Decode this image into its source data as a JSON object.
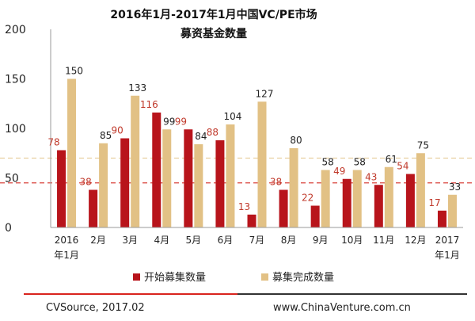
{
  "chart_data": {
    "type": "bar",
    "title": [
      "2016年1月-2017年1月中国VC/PE市场",
      "募资基金数量"
    ],
    "categories": [
      [
        "2016",
        "年1月"
      ],
      [
        "2月"
      ],
      [
        "3月"
      ],
      [
        "4月"
      ],
      [
        "5月"
      ],
      [
        "6月"
      ],
      [
        "7月"
      ],
      [
        "8月"
      ],
      [
        "9月"
      ],
      [
        "10月"
      ],
      [
        "11月"
      ],
      [
        "12月"
      ],
      [
        "2017",
        "年1月"
      ]
    ],
    "series": [
      {
        "name": "开始募集数量",
        "color": "#b8141b",
        "label_color": "#c0392b",
        "values": [
          78,
          38,
          90,
          116,
          99,
          88,
          13,
          38,
          22,
          49,
          43,
          54,
          17
        ]
      },
      {
        "name": "募集完成数量",
        "color": "#e2c185",
        "label_color": "#222222",
        "values": [
          150,
          85,
          133,
          99,
          84,
          104,
          127,
          80,
          58,
          58,
          61,
          75,
          33
        ]
      }
    ],
    "yticks": [
      0,
      50,
      100,
      150,
      200
    ],
    "ylim": [
      0,
      200
    ],
    "reference_lines": [
      {
        "value": 70,
        "color": "#e8cfa0"
      },
      {
        "value": 45,
        "color": "#d9403a"
      }
    ],
    "grid": false,
    "legend_position": "bottom"
  },
  "footer": {
    "source": "CVSource, 2017.02",
    "website": "www.ChinaVenture.com.cn"
  }
}
